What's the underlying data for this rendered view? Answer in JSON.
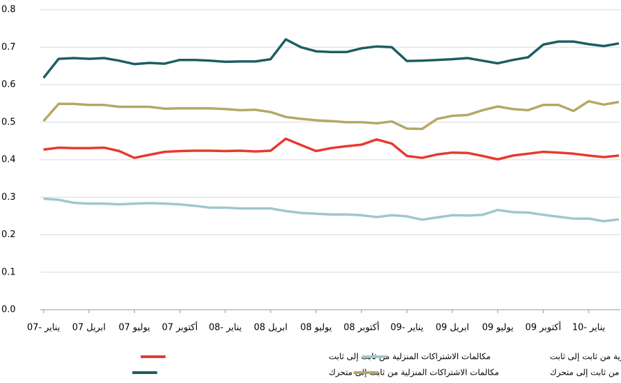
{
  "chart_data": {
    "type": "line",
    "categories": [
      "07- يناير",
      null,
      null,
      "ابريل 07",
      null,
      null,
      "يوليو 07",
      null,
      null,
      "أكتوبر 07",
      null,
      null,
      "08- يناير",
      null,
      null,
      "ابريل 08",
      null,
      null,
      "يوليو 08",
      null,
      null,
      "أكتوبر 08",
      null,
      null,
      "09- يناير",
      null,
      null,
      "ابريل 09",
      null,
      null,
      "يوليو 09",
      null,
      null,
      "أكتوبر 09",
      null,
      null,
      "10- يناير",
      null,
      null
    ],
    "series": [
      {
        "name": "مكالمات الاشتراكات المنزلية من ثابت إلى ثابت",
        "color": "#e8392e",
        "values": [
          0.427,
          0.432,
          0.431,
          0.431,
          0.432,
          0.423,
          0.405,
          0.413,
          0.421,
          0.423,
          0.424,
          0.424,
          0.423,
          0.424,
          0.422,
          0.424,
          0.456,
          0.439,
          0.423,
          0.431,
          0.436,
          0.44,
          0.454,
          0.443,
          0.41,
          0.405,
          0.414,
          0.419,
          0.418,
          0.41,
          0.401,
          0.411,
          0.416,
          0.421,
          0.419,
          0.416,
          0.411,
          0.407,
          0.411
        ]
      },
      {
        "name": "مكالمات الاشتراكات التجارية من ثابت إلى ثابت",
        "color": "#9fc7cc",
        "values": [
          0.296,
          0.293,
          0.285,
          0.283,
          0.283,
          0.281,
          0.283,
          0.284,
          0.283,
          0.281,
          0.277,
          0.272,
          0.272,
          0.27,
          0.27,
          0.27,
          0.263,
          0.258,
          0.256,
          0.254,
          0.254,
          0.252,
          0.247,
          0.252,
          0.249,
          0.24,
          0.246,
          0.252,
          0.251,
          0.253,
          0.266,
          0.26,
          0.259,
          0.253,
          0.248,
          0.243,
          0.243,
          0.236,
          0.241
        ]
      },
      {
        "name": "مكالمات الاشتراكات المنزلية من ثابت إلى متحرك",
        "color": "#1b5e63",
        "values": [
          0.618,
          0.669,
          0.671,
          0.669,
          0.671,
          0.664,
          0.655,
          0.658,
          0.656,
          0.666,
          0.666,
          0.664,
          0.661,
          0.662,
          0.662,
          0.668,
          0.721,
          0.7,
          0.689,
          0.687,
          0.687,
          0.697,
          0.702,
          0.7,
          0.663,
          0.664,
          0.666,
          0.668,
          0.671,
          0.664,
          0.657,
          0.666,
          0.673,
          0.707,
          0.715,
          0.715,
          0.708,
          0.703,
          0.71
        ]
      },
      {
        "name": "مكالمات الاشتراكات التجارية من ثابت إلى متحرك",
        "color": "#b5a865",
        "values": [
          0.503,
          0.549,
          0.549,
          0.546,
          0.546,
          0.541,
          0.541,
          0.541,
          0.536,
          0.537,
          0.537,
          0.537,
          0.535,
          0.532,
          0.533,
          0.527,
          0.514,
          0.509,
          0.505,
          0.503,
          0.5,
          0.5,
          0.497,
          0.502,
          0.483,
          0.482,
          0.509,
          0.517,
          0.519,
          0.532,
          0.542,
          0.535,
          0.532,
          0.546,
          0.546,
          0.53,
          0.556,
          0.547,
          0.554
        ]
      }
    ],
    "ylim": [
      0,
      0.8
    ],
    "yticks": [
      {
        "value": 0,
        "label": "0.0"
      },
      0.1,
      0.2,
      0.3,
      0.4,
      0.5,
      0.6,
      0.7,
      0.8
    ],
    "grid": true
  }
}
